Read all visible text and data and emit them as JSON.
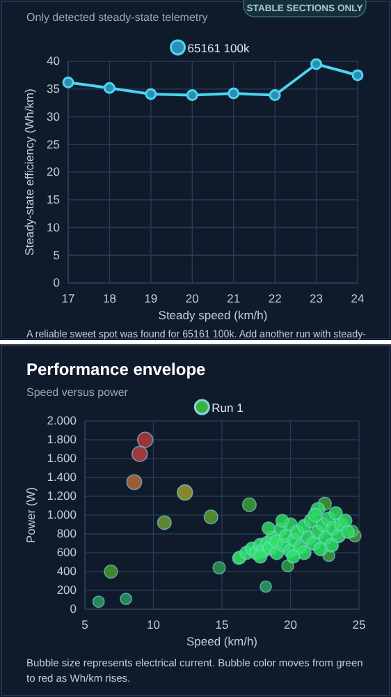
{
  "chart_data": [
    {
      "type": "line",
      "subtitle": "Only detected steady-state telemetry",
      "xlabel": "Steady speed (km/h)",
      "ylabel": "Steady-state efficiency (Wh/km)",
      "annotations": [
        "STABLE SECTIONS ONLY",
        "A reliable sweet spot was found for 65161 100k. Add another run with steady-"
      ],
      "x": [
        17,
        18,
        19,
        20,
        21,
        22,
        23,
        24
      ],
      "series": [
        {
          "name": "65161 100k",
          "color": "#4dd3f2",
          "values": [
            36.2,
            35.2,
            34.1,
            33.9,
            34.2,
            33.9,
            39.5,
            37.5
          ]
        }
      ],
      "xlim": [
        17,
        24
      ],
      "xticks": [
        17,
        18,
        19,
        20,
        21,
        22,
        23,
        24
      ],
      "ylim": [
        0,
        40
      ],
      "yticks": [
        0,
        5,
        10,
        15,
        20,
        25,
        30,
        35,
        40
      ],
      "grid": true,
      "legend": "top",
      "marker": "circle",
      "line_style": "solid"
    },
    {
      "type": "bubble",
      "title": "Performance envelope",
      "subtitle": "Speed versus power",
      "xlabel": "Speed (km/h)",
      "ylabel": "Power (W)",
      "annotations": [
        "Bubble size represents electrical current. Bubble color moves from green to red as Wh/km rises."
      ],
      "series": [
        {
          "name": "Run 1",
          "color": "#3cb043",
          "x": [
            9.4,
            9.0,
            8.6,
            12.3,
            10.8,
            14.2,
            6.9,
            6.0,
            8.0,
            14.8,
            18.2,
            19.8,
            17.0,
            22.5,
            24.7,
            24.5,
            22.8,
            16.2,
            16.3,
            16.8,
            17.2,
            17.5,
            17.8,
            18.0,
            18.3,
            18.5,
            18.7,
            19.0,
            19.0,
            19.3,
            19.5,
            19.7,
            20.0,
            20.0,
            20.3,
            20.5,
            20.7,
            21.0,
            21.0,
            21.3,
            21.5,
            21.7,
            22.0,
            22.0,
            22.2,
            22.4,
            22.6,
            22.8,
            23.0,
            23.1,
            23.3,
            23.5,
            23.7,
            24.0,
            24.2,
            19.4,
            20.2,
            21.8,
            18.4,
            17.8
          ],
          "values": [
            1800,
            1650,
            1350,
            1240,
            920,
            980,
            400,
            80,
            110,
            440,
            240,
            460,
            1110,
            1120,
            780,
            830,
            570,
            540,
            550,
            600,
            640,
            600,
            680,
            620,
            700,
            650,
            760,
            600,
            720,
            850,
            680,
            780,
            620,
            900,
            740,
            820,
            660,
            880,
            600,
            760,
            940,
            700,
            820,
            1060,
            640,
            900,
            760,
            960,
            680,
            860,
            1020,
            780,
            900,
            940,
            820,
            940,
            560,
            1000,
            860,
            560
          ],
          "sizes": [
            1,
            1,
            0.95,
            1,
            0.8,
            0.8,
            0.75,
            0.55,
            0.55,
            0.65,
            0.55,
            0.6,
            0.8,
            0.75,
            0.65,
            0.6,
            0.6,
            0.6,
            0.7,
            0.75,
            0.8,
            0.8,
            0.8,
            0.8,
            0.8,
            0.8,
            0.8,
            0.8,
            0.8,
            0.75,
            0.8,
            0.8,
            0.8,
            0.75,
            0.8,
            0.8,
            0.8,
            0.8,
            0.8,
            0.8,
            0.8,
            0.8,
            0.8,
            0.8,
            0.8,
            0.8,
            0.8,
            0.8,
            0.8,
            0.8,
            0.75,
            0.8,
            0.8,
            0.75,
            0.7,
            0.7,
            0.75,
            0.8,
            0.7,
            0.75
          ],
          "colors": [
            "#b03a3a",
            "#b84040",
            "#b0683a",
            "#9a9a30",
            "#6a9a30",
            "#5a9a30",
            "#4a9a30",
            "#2a9a60",
            "#2a9a60",
            "#2a9a50",
            "#2aa060",
            "#30a040",
            "#40a030",
            "#40a030",
            "#40a030",
            "#40a040",
            "#40a040",
            "#30a040",
            "#2fd860",
            "#2fe36a",
            "#2fe36a",
            "#2fe36a",
            "#2fe36a",
            "#2fe36a",
            "#2fe36a",
            "#2fe36a",
            "#2fe36a",
            "#2fe36a",
            "#2fe36a",
            "#2fd860",
            "#2fe36a",
            "#2fe36a",
            "#2fe36a",
            "#2fd860",
            "#2fe36a",
            "#2fe36a",
            "#2fe36a",
            "#2fe36a",
            "#2fe36a",
            "#2fe36a",
            "#2fd860",
            "#2fe36a",
            "#2fe36a",
            "#2fd860",
            "#2fe36a",
            "#2fe36a",
            "#2fe36a",
            "#2fd860",
            "#2fe36a",
            "#2fe36a",
            "#2fd860",
            "#2fe36a",
            "#2fe36a",
            "#2fd860",
            "#2fd860",
            "#2fd860",
            "#2fe36a",
            "#2fd860",
            "#2fd860",
            "#2fe36a"
          ]
        }
      ],
      "xlim": [
        5,
        25
      ],
      "xticks": [
        5,
        10,
        15,
        20,
        25
      ],
      "ylim": [
        0,
        2000
      ],
      "yticks": [
        0,
        200,
        400,
        600,
        800,
        {
          "value": 1000,
          "label": "1.000"
        },
        {
          "value": 1200,
          "label": "1.200"
        },
        {
          "value": 1400,
          "label": "1.400"
        },
        {
          "value": 1600,
          "label": "1.600"
        },
        {
          "value": 1800,
          "label": "1.800"
        },
        {
          "value": 2000,
          "label": "2.000"
        }
      ],
      "grid": true,
      "legend": "top"
    }
  ]
}
